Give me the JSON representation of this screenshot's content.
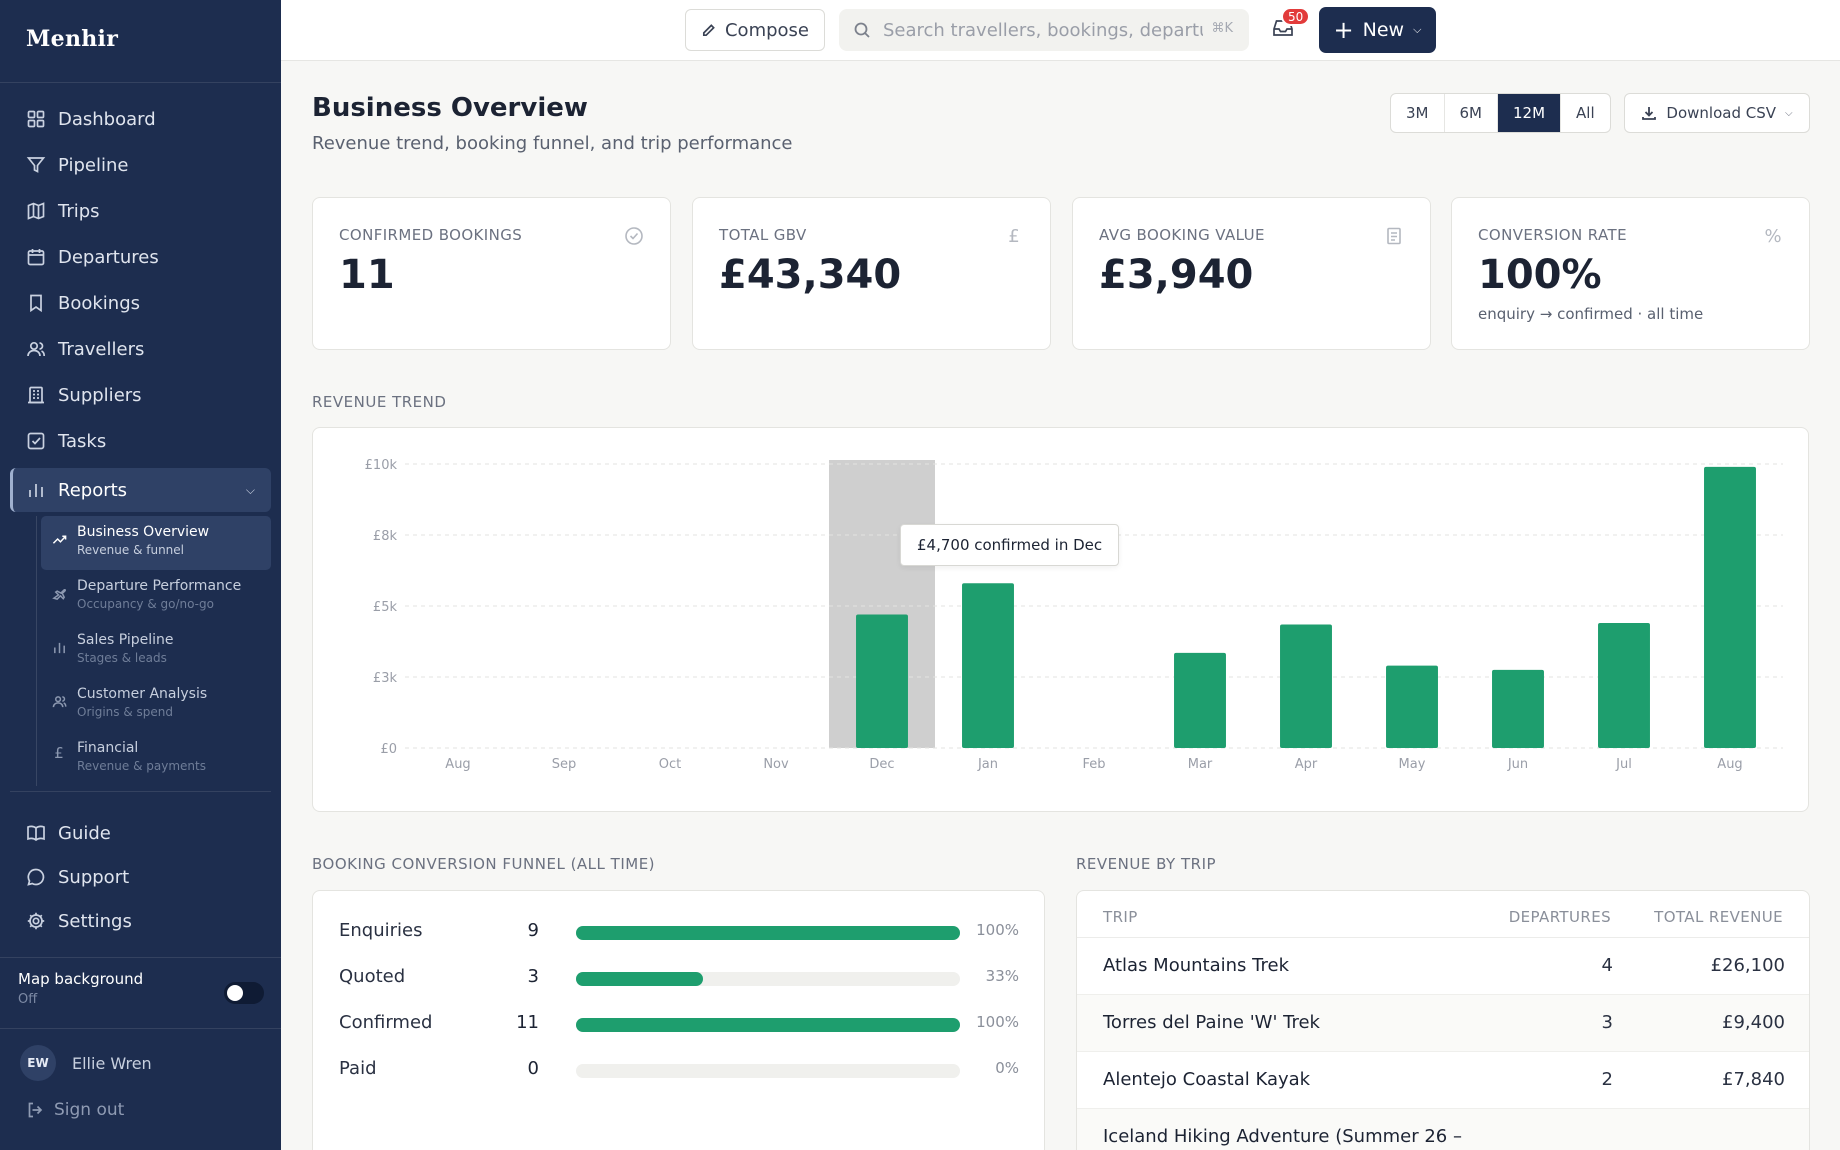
{
  "brand": {
    "name": "Menhir"
  },
  "sidebar": {
    "items": [
      {
        "label": "Dashboard",
        "icon": "dashboard-icon"
      },
      {
        "label": "Pipeline",
        "icon": "funnel-icon"
      },
      {
        "label": "Trips",
        "icon": "map-icon"
      },
      {
        "label": "Departures",
        "icon": "calendar-icon"
      },
      {
        "label": "Bookings",
        "icon": "bookmark-icon"
      },
      {
        "label": "Travellers",
        "icon": "users-icon"
      },
      {
        "label": "Suppliers",
        "icon": "building-icon"
      },
      {
        "label": "Tasks",
        "icon": "checkbox-icon"
      }
    ],
    "reports": {
      "label": "Reports",
      "icon": "bar-chart-icon",
      "subitems": [
        {
          "title": "Business Overview",
          "subtitle": "Revenue & funnel",
          "icon": "trending-up-icon"
        },
        {
          "title": "Departure Performance",
          "subtitle": "Occupancy & go/no-go",
          "icon": "plane-icon"
        },
        {
          "title": "Sales Pipeline",
          "subtitle": "Stages & leads",
          "icon": "bar-chart-icon"
        },
        {
          "title": "Customer Analysis",
          "subtitle": "Origins & spend",
          "icon": "users-icon"
        },
        {
          "title": "Financial",
          "subtitle": "Revenue & payments",
          "icon": "pound-icon"
        }
      ]
    },
    "bottom": [
      {
        "label": "Guide",
        "icon": "book-icon"
      },
      {
        "label": "Support",
        "icon": "chat-icon"
      },
      {
        "label": "Settings",
        "icon": "gear-icon"
      }
    ],
    "map_background": {
      "label": "Map background",
      "state": "Off"
    },
    "user": {
      "initials": "EW",
      "name": "Ellie Wren"
    },
    "signout": "Sign out"
  },
  "topbar": {
    "compose": "Compose",
    "search_placeholder": "Search travellers, bookings, departures",
    "search_shortcut": "⌘K",
    "inbox_count": "50",
    "new_label": "New"
  },
  "header": {
    "title": "Business Overview",
    "subtitle": "Revenue trend, booking funnel, and trip performance",
    "ranges": [
      "3M",
      "6M",
      "12M",
      "All"
    ],
    "active_range": "12M",
    "download": "Download CSV"
  },
  "kpis": [
    {
      "label": "CONFIRMED BOOKINGS",
      "value": "11",
      "note": "",
      "icon": "check-circle-icon"
    },
    {
      "label": "TOTAL GBV",
      "value": "£43,340",
      "note": "",
      "icon": "pound-icon"
    },
    {
      "label": "AVG BOOKING VALUE",
      "value": "£3,940",
      "note": "",
      "icon": "receipt-icon"
    },
    {
      "label": "CONVERSION RATE",
      "value": "100%",
      "note": "enquiry → confirmed · all time",
      "icon": "percent-icon"
    }
  ],
  "revenue_trend": {
    "label": "REVENUE TREND",
    "tooltip": "£4,700 confirmed in Dec"
  },
  "chart_data": {
    "type": "bar",
    "categories": [
      "Aug",
      "Sep",
      "Oct",
      "Nov",
      "Dec",
      "Jan",
      "Feb",
      "Mar",
      "Apr",
      "May",
      "Jun",
      "Jul",
      "Aug"
    ],
    "values": [
      0,
      0,
      0,
      0,
      4700,
      5800,
      0,
      3350,
      4350,
      2900,
      2750,
      4400,
      9900
    ],
    "yticks": [
      {
        "value": 0,
        "label": "£0"
      },
      {
        "value": 2500,
        "label": "£3k"
      },
      {
        "value": 5000,
        "label": "£5k"
      },
      {
        "value": 7500,
        "label": "£8k"
      },
      {
        "value": 10000,
        "label": "£10k"
      }
    ],
    "ylim": [
      0,
      10000
    ],
    "highlight_index": 4,
    "bar_color": "#1e9e6e",
    "highlight_color": "#cfcfcf",
    "grid": true
  },
  "funnel": {
    "label": "BOOKING CONVERSION FUNNEL (ALL TIME)",
    "rows": [
      {
        "label": "Enquiries",
        "count": "9",
        "pct": "100%",
        "fraction": 1.0
      },
      {
        "label": "Quoted",
        "count": "3",
        "pct": "33%",
        "fraction": 0.33
      },
      {
        "label": "Confirmed",
        "count": "11",
        "pct": "100%",
        "fraction": 1.0
      },
      {
        "label": "Paid",
        "count": "0",
        "pct": "0%",
        "fraction": 0
      }
    ]
  },
  "revenue_by_trip": {
    "label": "REVENUE BY TRIP",
    "columns": [
      "TRIP",
      "DEPARTURES",
      "TOTAL REVENUE"
    ],
    "rows": [
      {
        "trip": "Atlas Mountains Trek",
        "departures": "4",
        "revenue": "£26,100"
      },
      {
        "trip": "Torres del Paine 'W' Trek",
        "departures": "3",
        "revenue": "£9,400"
      },
      {
        "trip": "Alentejo Coastal Kayak",
        "departures": "2",
        "revenue": "£7,840"
      },
      {
        "trip": "Iceland Hiking Adventure (Summer 26 –",
        "departures": "",
        "revenue": ""
      }
    ]
  }
}
